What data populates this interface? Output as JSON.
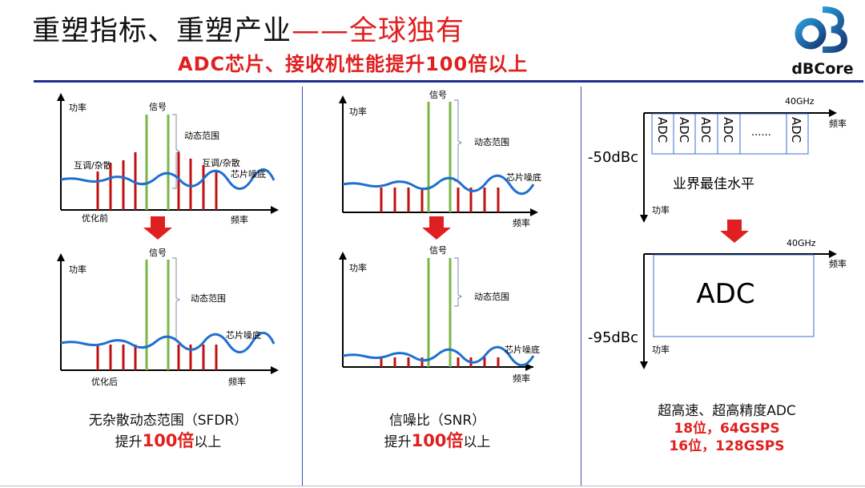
{
  "header": {
    "title_main": "重塑指标、重塑产业",
    "title_dash": "——",
    "title_highlight": "全球独有",
    "subtitle": "ADC芯片、接收机性能提升100倍以上",
    "logo_text": "dBCore"
  },
  "panel1": {
    "before": {
      "power": "功率",
      "signal": "信号",
      "dynamic_range": "动态范围",
      "spur_left": "互调/杂散",
      "spur_right": "互调/杂散",
      "noise_floor": "芯片噪底",
      "state": "优化前",
      "frequency": "频率"
    },
    "after": {
      "power": "功率",
      "signal": "信号",
      "dynamic_range": "动态范围",
      "noise_floor": "芯片噪底",
      "state": "优化后",
      "frequency": "频率"
    },
    "caption_line1": "无杂散动态范围（SFDR）",
    "caption_pre": "提升",
    "caption_big": "100倍",
    "caption_post": "以上"
  },
  "panel2": {
    "top": {
      "power": "功率",
      "signal": "信号",
      "dynamic_range": "动态范围",
      "noise_floor": "芯片噪底",
      "frequency": "频率"
    },
    "bottom": {
      "power": "功率",
      "signal": "信号",
      "dynamic_range": "动态范围",
      "noise_floor": "芯片噪底",
      "frequency": "频率"
    },
    "caption_line1": "信噪比（SNR）",
    "caption_pre": "提升",
    "caption_big": "100倍",
    "caption_post": "以上"
  },
  "panel3": {
    "top": {
      "freq_label": "40GHz",
      "frequency": "频率",
      "level": "-50dBc",
      "power": "功率",
      "adc_labels": [
        "ADC",
        "ADC",
        "ADC",
        "ADC",
        "ADC"
      ],
      "ellipsis": "······",
      "note": "业界最佳水平"
    },
    "bottom": {
      "freq_label": "40GHz",
      "frequency": "频率",
      "level": "-95dBc",
      "power": "功率",
      "adc": "ADC"
    },
    "caption_line1": "超高速、超高精度ADC",
    "caption_line2": "18位，64GSPS",
    "caption_line3": "16位，128GSPS"
  },
  "colors": {
    "red": "#e02020",
    "navy": "#1f2f8f",
    "signal_green": "#7ab648",
    "noise_blue": "#1f6fd0",
    "spur_red": "#c01010",
    "box_blue": "#3a6fd0"
  }
}
